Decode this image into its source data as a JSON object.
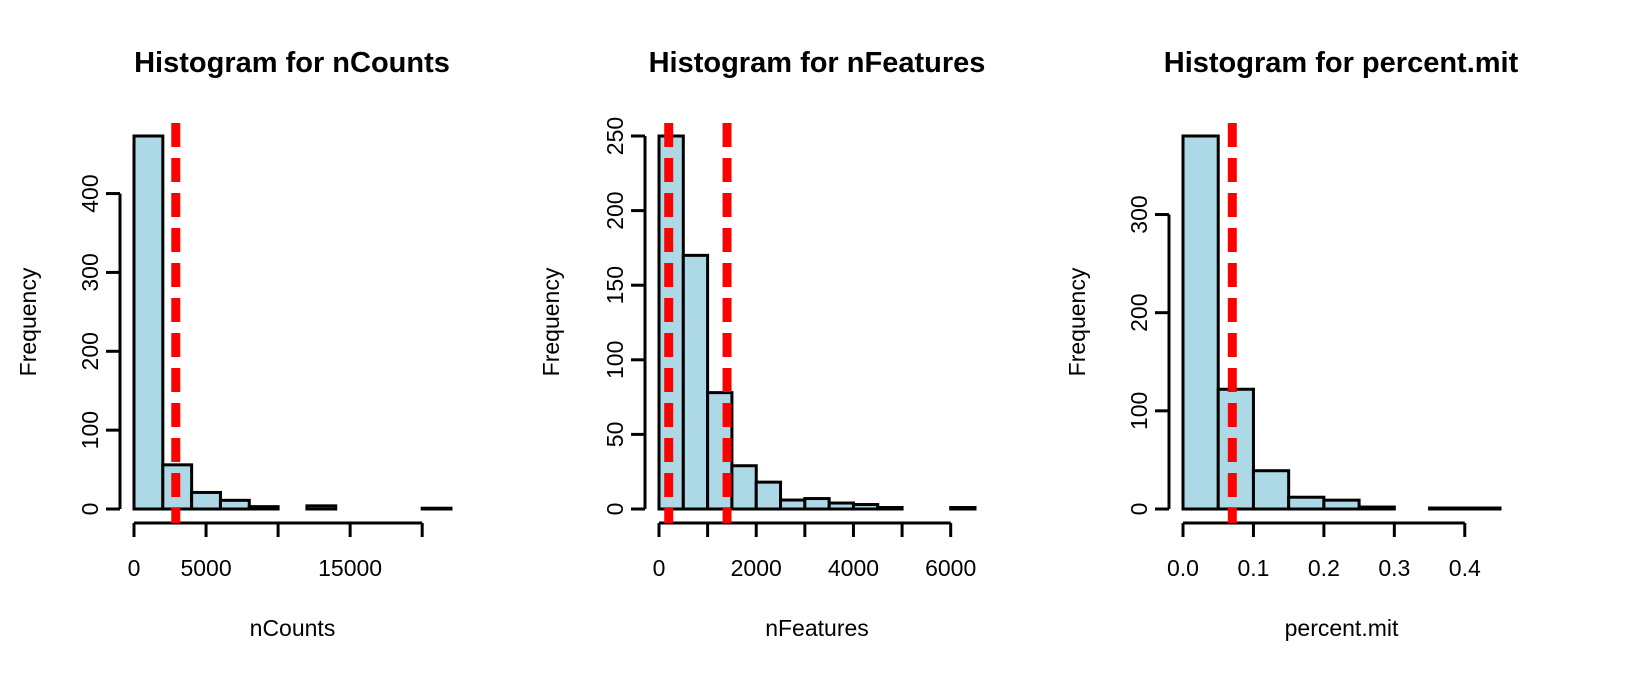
{
  "chart_data": [
    {
      "type": "bar",
      "title": "Histogram for nCounts",
      "xlabel": "nCounts",
      "ylabel": "Frequency",
      "bins": [
        {
          "from": 0,
          "to": 2000,
          "count": 473
        },
        {
          "from": 2000,
          "to": 4000,
          "count": 56
        },
        {
          "from": 4000,
          "to": 6000,
          "count": 21
        },
        {
          "from": 6000,
          "to": 8000,
          "count": 11
        },
        {
          "from": 8000,
          "to": 10000,
          "count": 3
        },
        {
          "from": 10000,
          "to": 12000,
          "count": 0
        },
        {
          "from": 12000,
          "to": 14000,
          "count": 4
        },
        {
          "from": 14000,
          "to": 16000,
          "count": 0
        },
        {
          "from": 16000,
          "to": 18000,
          "count": 0
        },
        {
          "from": 18000,
          "to": 20000,
          "count": 0
        },
        {
          "from": 20000,
          "to": 22000,
          "count": 1
        }
      ],
      "xticks": [
        0,
        5000,
        10000,
        15000,
        20000
      ],
      "xtick_labels": [
        "0",
        "5000",
        "",
        "15000",
        ""
      ],
      "yticks": [
        0,
        100,
        200,
        300,
        400
      ],
      "ytick_labels": [
        "0",
        "100",
        "200",
        "300",
        "400"
      ],
      "xlim": [
        0,
        22000
      ],
      "ylim": [
        0,
        473
      ],
      "cutoff_lines": [
        2900
      ],
      "fill_color": "#ADD8E6",
      "line_color": "#FF0000"
    },
    {
      "type": "bar",
      "title": "Histogram for nFeatures",
      "xlabel": "nFeatures",
      "ylabel": "Frequency",
      "bins": [
        {
          "from": 0,
          "to": 500,
          "count": 250
        },
        {
          "from": 500,
          "to": 1000,
          "count": 170
        },
        {
          "from": 1000,
          "to": 1500,
          "count": 78
        },
        {
          "from": 1500,
          "to": 2000,
          "count": 29
        },
        {
          "from": 2000,
          "to": 2500,
          "count": 18
        },
        {
          "from": 2500,
          "to": 3000,
          "count": 6
        },
        {
          "from": 3000,
          "to": 3500,
          "count": 7
        },
        {
          "from": 3500,
          "to": 4000,
          "count": 4
        },
        {
          "from": 4000,
          "to": 4500,
          "count": 3
        },
        {
          "from": 4500,
          "to": 5000,
          "count": 1
        },
        {
          "from": 5000,
          "to": 5500,
          "count": 0
        },
        {
          "from": 5500,
          "to": 6000,
          "count": 0
        },
        {
          "from": 6000,
          "to": 6500,
          "count": 1
        }
      ],
      "xticks": [
        0,
        1000,
        2000,
        3000,
        4000,
        5000,
        6000
      ],
      "xtick_labels": [
        "0",
        "",
        "2000",
        "",
        "4000",
        "",
        "6000"
      ],
      "yticks": [
        0,
        50,
        100,
        150,
        200,
        250
      ],
      "ytick_labels": [
        "0",
        "50",
        "100",
        "150",
        "200",
        "250"
      ],
      "xlim": [
        0,
        6500
      ],
      "ylim": [
        0,
        250
      ],
      "cutoff_lines": [
        200,
        1400
      ],
      "fill_color": "#ADD8E6",
      "line_color": "#FF0000"
    },
    {
      "type": "bar",
      "title": "Histogram for percent.mit",
      "xlabel": "percent.mit",
      "ylabel": "Frequency",
      "bins": [
        {
          "from": 0.0,
          "to": 0.05,
          "count": 380
        },
        {
          "from": 0.05,
          "to": 0.1,
          "count": 122
        },
        {
          "from": 0.1,
          "to": 0.15,
          "count": 39
        },
        {
          "from": 0.15,
          "to": 0.2,
          "count": 12
        },
        {
          "from": 0.2,
          "to": 0.25,
          "count": 9
        },
        {
          "from": 0.25,
          "to": 0.3,
          "count": 2
        },
        {
          "from": 0.3,
          "to": 0.35,
          "count": 0
        },
        {
          "from": 0.35,
          "to": 0.4,
          "count": 1
        },
        {
          "from": 0.4,
          "to": 0.45,
          "count": 1
        }
      ],
      "xticks": [
        0.0,
        0.1,
        0.2,
        0.3,
        0.4
      ],
      "xtick_labels": [
        "0.0",
        "0.1",
        "0.2",
        "0.3",
        "0.4"
      ],
      "yticks": [
        0,
        100,
        200,
        300
      ],
      "ytick_labels": [
        "0",
        "100",
        "200",
        "300"
      ],
      "xlim": [
        0,
        0.45
      ],
      "ylim": [
        0,
        380
      ],
      "cutoff_lines": [
        0.07
      ],
      "fill_color": "#ADD8E6",
      "line_color": "#FF0000"
    }
  ]
}
